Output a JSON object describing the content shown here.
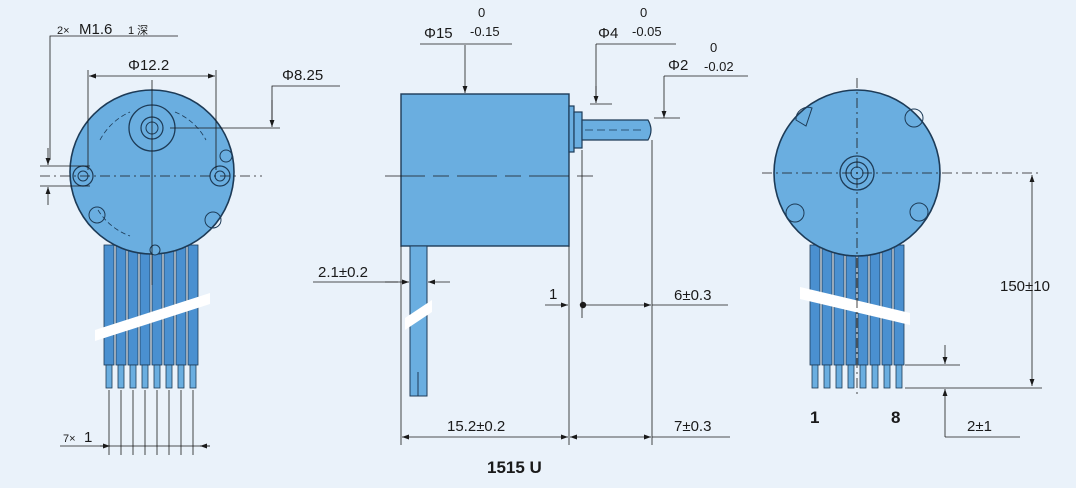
{
  "colors": {
    "background": "#eaf2fa",
    "motor_fill": "#6aaee0",
    "motor_edge": "#1d3b57",
    "wire_fill": "#4a90d0",
    "line": "#1a1a1a"
  },
  "left_view": {
    "screw_prefix": "2×",
    "screw_main": "M1.6",
    "screw_depth": "1 深",
    "bolt_circle": "Φ12.2",
    "boss_dia": "Φ8.25",
    "pin_pitch_prefix": "7×",
    "pin_pitch_main": "1"
  },
  "middle_view": {
    "body_dia_main": "Φ15",
    "body_dia_upper": "0",
    "body_dia_lower": "-0.15",
    "collar_dia_main": "Φ4",
    "collar_dia_upper": "0",
    "collar_dia_lower": "-0.05",
    "shaft_dia_main": "Φ2",
    "shaft_dia_upper": "0",
    "shaft_dia_lower": "-0.02",
    "lead_width": "2.1±0.2",
    "collar_length": "1",
    "shaft_offset": "6±0.3",
    "body_length": "15.2±0.2",
    "shaft_length": "7±0.3",
    "model_label": "1515 U"
  },
  "right_view": {
    "lead_length": "150±10",
    "pin_tip": "2±1",
    "pin_first": "1",
    "pin_last": "8"
  }
}
